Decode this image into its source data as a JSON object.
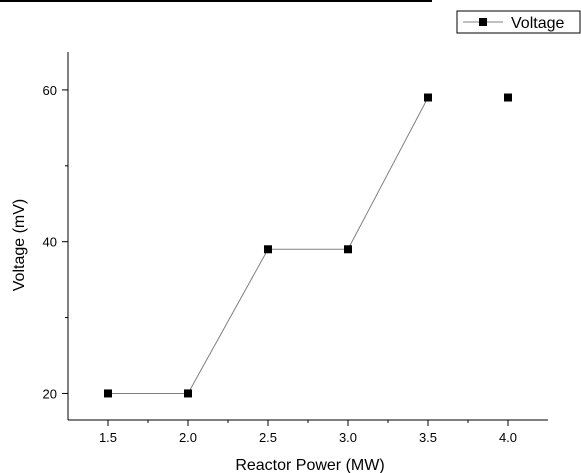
{
  "chart_data": {
    "type": "line",
    "xlabel": "Reactor Power (MW)",
    "ylabel": "Voltage (mV)",
    "xlim": [
      1.25,
      4.25
    ],
    "ylim": [
      16.5,
      65
    ],
    "x_ticks": [
      1.5,
      2.0,
      2.5,
      3.0,
      3.5,
      4.0
    ],
    "x_tick_labels": [
      "1.5",
      "2.0",
      "2.5",
      "3.0",
      "3.5",
      "4.0"
    ],
    "y_ticks": [
      20,
      40,
      60
    ],
    "y_tick_labels": [
      "20",
      "40",
      "60"
    ],
    "legend_position": "top-right",
    "grid": false,
    "series": [
      {
        "name": "Voltage",
        "color": "#000000",
        "line_color": "#808080",
        "marker": "square",
        "x": [
          1.5,
          2.0,
          2.5,
          3.0,
          3.5,
          4.0
        ],
        "y": [
          20,
          20,
          39,
          39,
          59,
          59
        ],
        "connected_points": 5
      }
    ]
  }
}
